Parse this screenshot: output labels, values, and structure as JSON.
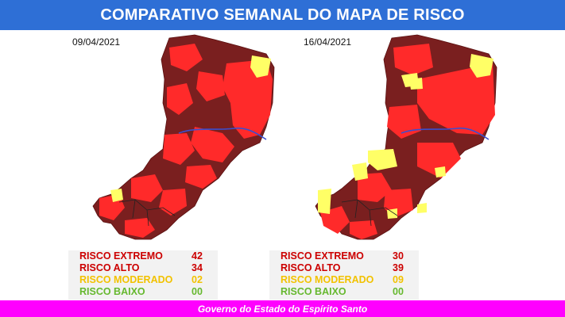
{
  "header": {
    "title": "COMPARATIVO SEMANAL DO MAPA DE RISCO"
  },
  "colors": {
    "header_bg": "#2e6fd6",
    "risco_extremo": "#7a1f1f",
    "risco_alto": "#ff3030",
    "risco_moderado": "#ffff66",
    "risco_baixo": "#66cc33",
    "footer_bg": "#ff00ff"
  },
  "panels": [
    {
      "date": "09/04/2021",
      "legend": [
        {
          "label": "RISCO EXTREMO",
          "value": "42",
          "color": "#cc0000"
        },
        {
          "label": "RISCO ALTO",
          "value": "34",
          "color": "#cc0000"
        },
        {
          "label": "RISCO MODERADO",
          "value": "02",
          "color": "#f2c200"
        },
        {
          "label": "RISCO BAIXO",
          "value": "00",
          "color": "#66b82e"
        }
      ]
    },
    {
      "date": "16/04/2021",
      "legend": [
        {
          "label": "RISCO EXTREMO",
          "value": "30",
          "color": "#cc0000"
        },
        {
          "label": "RISCO ALTO",
          "value": "39",
          "color": "#cc0000"
        },
        {
          "label": "RISCO MODERADO",
          "value": "09",
          "color": "#f2c200"
        },
        {
          "label": "RISCO BAIXO",
          "value": "00",
          "color": "#66b82e"
        }
      ]
    }
  ],
  "footer": {
    "text": "Governo do Estado do Espírito Santo"
  }
}
